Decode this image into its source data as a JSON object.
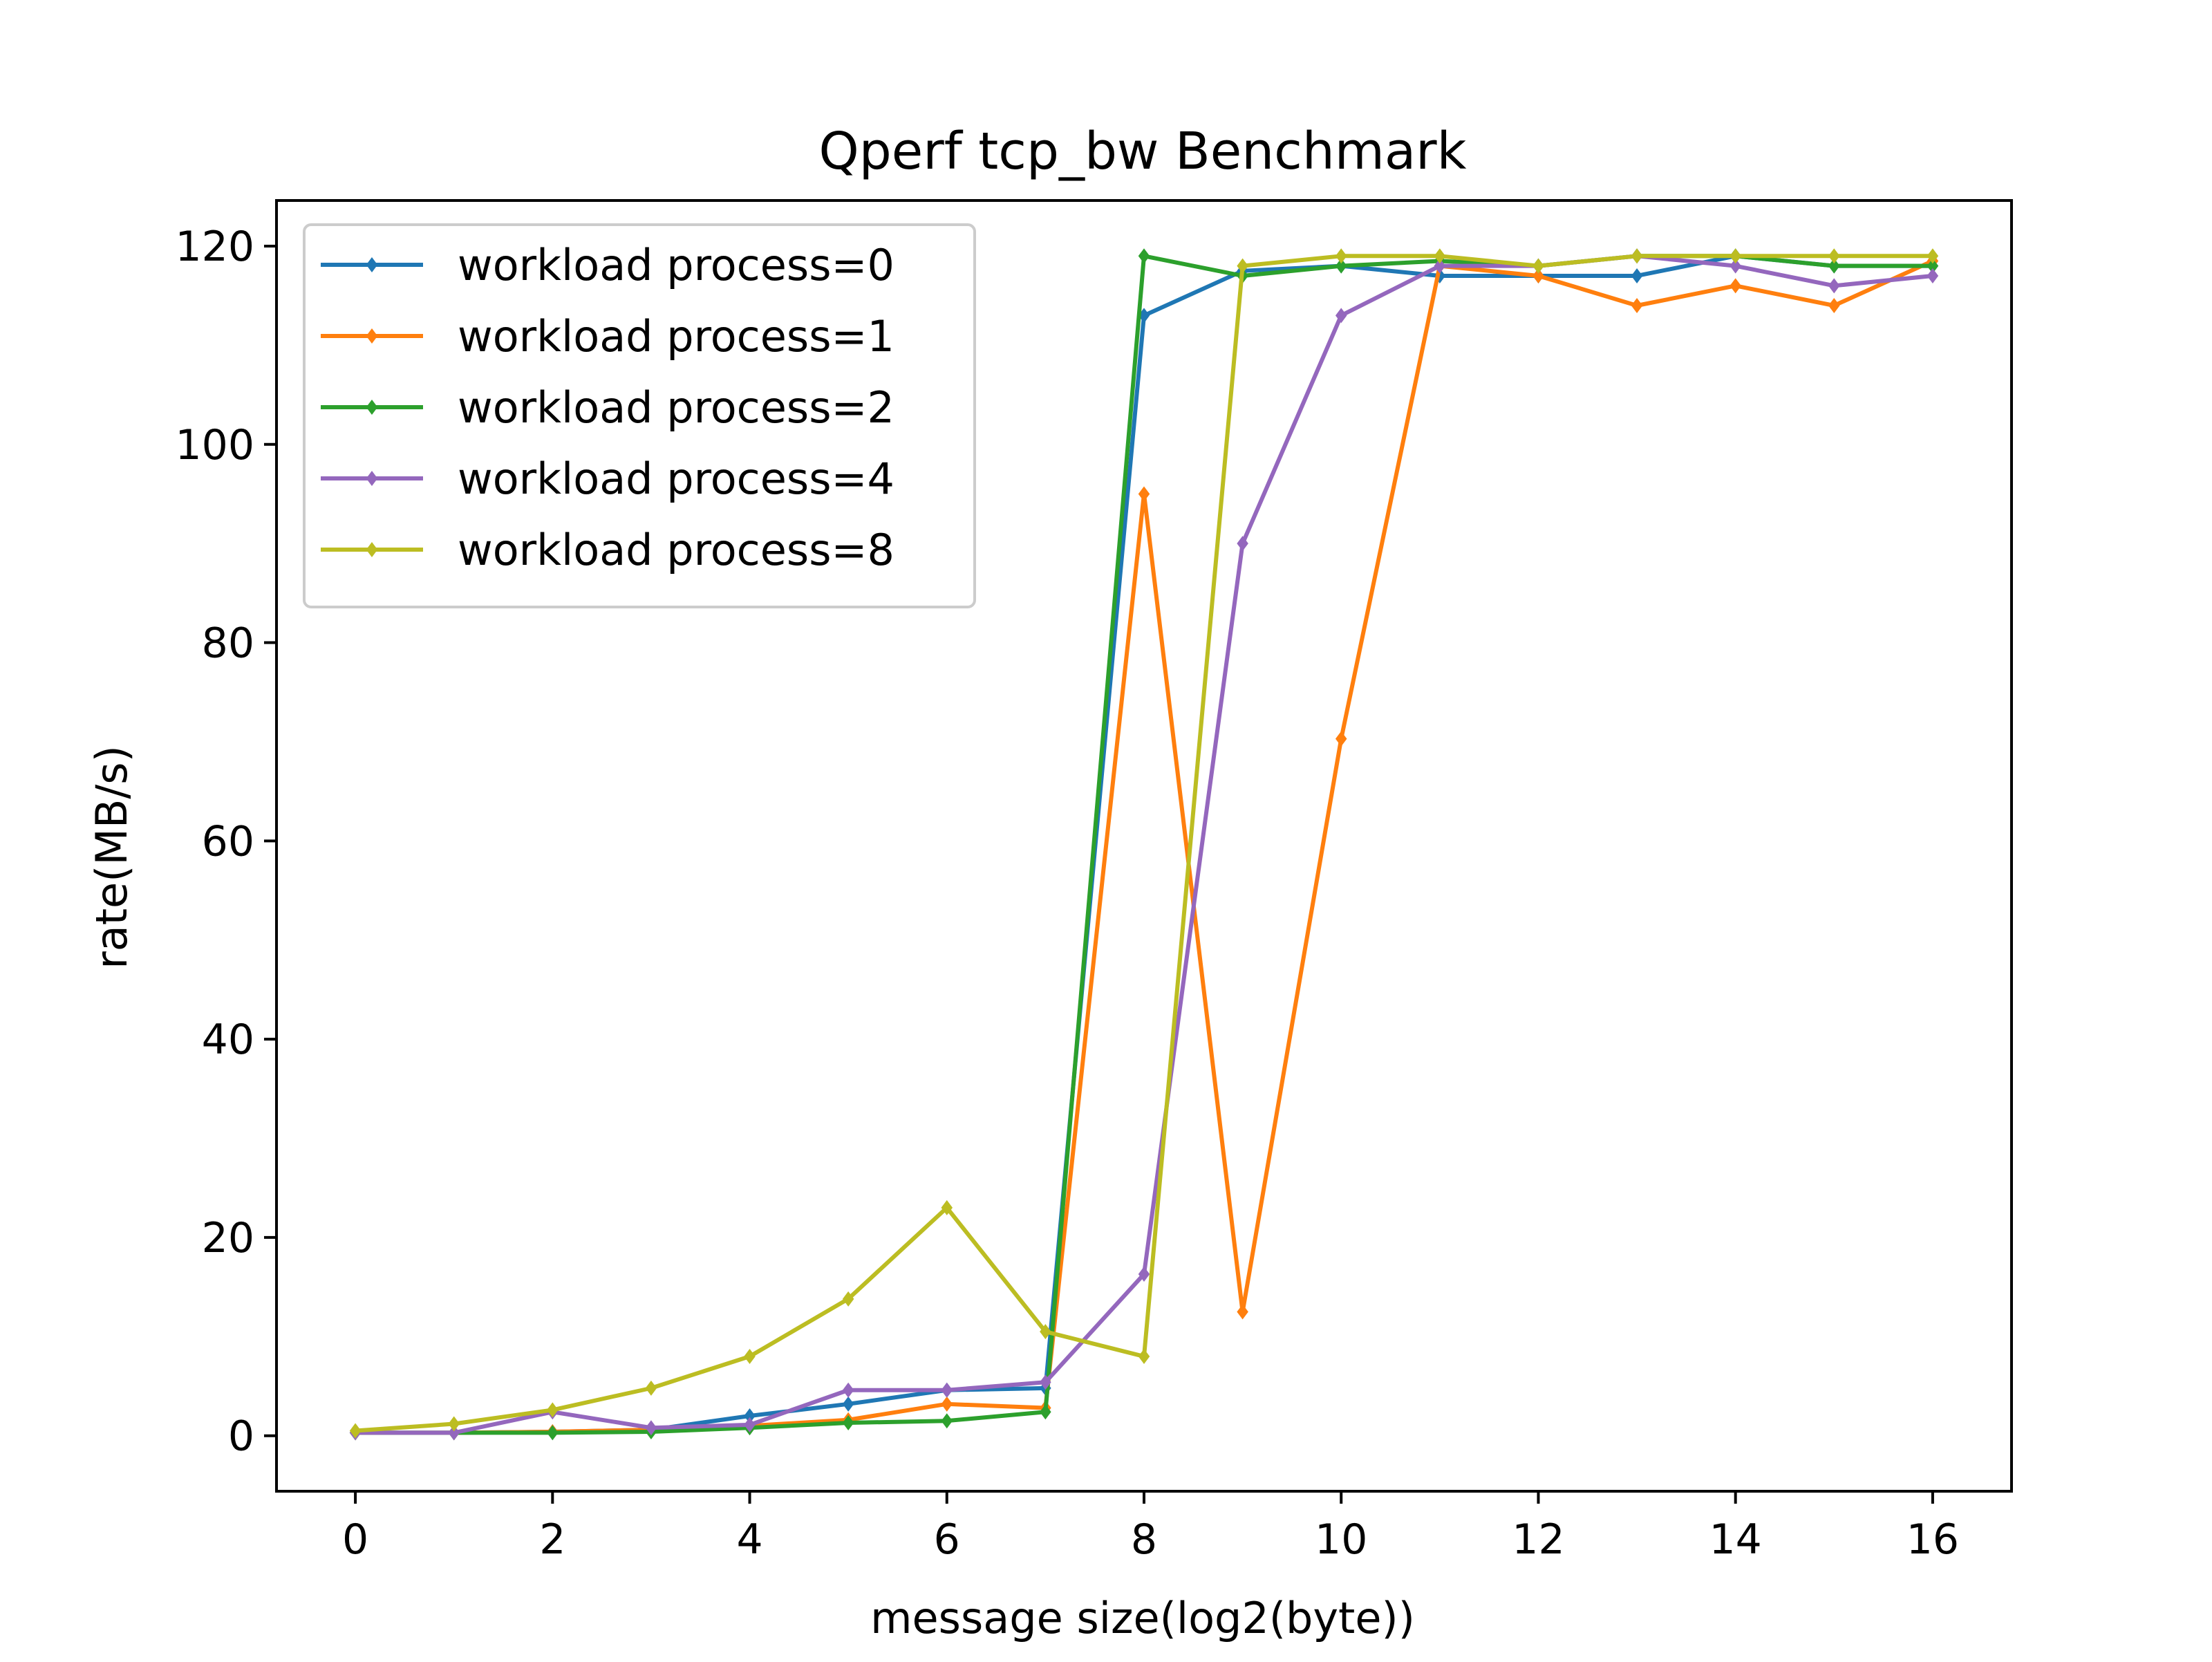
{
  "chart_data": {
    "type": "line",
    "title": "Qperf tcp_bw Benchmark",
    "xlabel": "message size(log2(byte))",
    "ylabel": "rate(MB/s)",
    "xlim": [
      -0.8,
      16.8
    ],
    "ylim": [
      -5.6,
      124.6
    ],
    "x_ticks": [
      0,
      2,
      4,
      6,
      8,
      10,
      12,
      14,
      16
    ],
    "y_ticks": [
      0,
      20,
      40,
      60,
      80,
      100,
      120
    ],
    "x": [
      0,
      1,
      2,
      3,
      4,
      5,
      6,
      7,
      8,
      9,
      10,
      11,
      12,
      13,
      14,
      15,
      16
    ],
    "grid": false,
    "legend_position": "upper-left",
    "marker": "diamond",
    "series": [
      {
        "name": "workload process=0",
        "color": "#1f77b4",
        "values": [
          0.3,
          0.3,
          0.4,
          0.6,
          2.0,
          3.2,
          4.6,
          4.8,
          113,
          117.5,
          118,
          117,
          117,
          117,
          119,
          118,
          118
        ]
      },
      {
        "name": "workload process=1",
        "color": "#ff7f0e",
        "values": [
          0.3,
          0.3,
          0.4,
          0.6,
          1.0,
          1.6,
          3.2,
          2.8,
          95,
          12.5,
          70.3,
          118,
          117,
          114,
          116,
          114,
          118.5
        ]
      },
      {
        "name": "workload process=2",
        "color": "#2ca02c",
        "values": [
          0.3,
          0.3,
          0.3,
          0.4,
          0.8,
          1.3,
          1.5,
          2.4,
          119,
          117,
          118,
          118.5,
          118,
          119,
          119,
          118,
          118
        ]
      },
      {
        "name": "workload process=4",
        "color": "#9467bd",
        "values": [
          0.3,
          0.3,
          2.4,
          0.8,
          1.1,
          4.6,
          4.6,
          5.4,
          16.3,
          90,
          113,
          118,
          118,
          119,
          118,
          116,
          117
        ]
      },
      {
        "name": "workload process=8",
        "color": "#bcbd22",
        "values": [
          0.5,
          1.2,
          2.6,
          4.8,
          8.0,
          13.8,
          23,
          10.5,
          8.0,
          118,
          119,
          119,
          118,
          119,
          119,
          119,
          119
        ]
      }
    ]
  }
}
